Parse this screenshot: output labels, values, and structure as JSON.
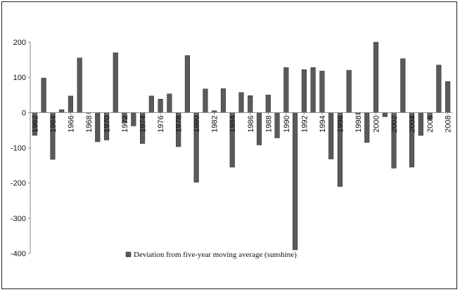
{
  "chart_data": {
    "type": "bar",
    "x": [
      1962,
      1963,
      1964,
      1965,
      1966,
      1967,
      1968,
      1969,
      1970,
      1971,
      1972,
      1973,
      1974,
      1975,
      1976,
      1977,
      1978,
      1979,
      1980,
      1981,
      1982,
      1983,
      1984,
      1985,
      1986,
      1987,
      1988,
      1989,
      1990,
      1991,
      1992,
      1993,
      1994,
      1995,
      1996,
      1997,
      1998,
      1999,
      2000,
      2001,
      2002,
      2003,
      2004,
      2005,
      2006,
      2007,
      2008
    ],
    "x_tick_labels": [
      "1962",
      "1964",
      "1966",
      "1968",
      "1970",
      "1972",
      "1974",
      "1976",
      "1978",
      "1980",
      "1982",
      "1984",
      "1986",
      "1988",
      "1990",
      "1992",
      "1994",
      "1996",
      "1998",
      "2000",
      "2002",
      "2004",
      "2006",
      "2008"
    ],
    "series": [
      {
        "name": "Deviation from five-year moving average (sunshine)",
        "values": [
          -65,
          98,
          -133,
          8,
          47,
          155,
          0,
          -83,
          -78,
          170,
          -30,
          -38,
          -88,
          47,
          38,
          53,
          -97,
          162,
          -198,
          67,
          5,
          68,
          -155,
          57,
          48,
          -92,
          50,
          -72,
          128,
          -390,
          122,
          128,
          118,
          -132,
          -210,
          120,
          -5,
          -85,
          200,
          -12,
          -158,
          153,
          -155,
          -65,
          -20,
          135,
          88
        ]
      }
    ],
    "ylim": [
      -400,
      200
    ],
    "yticks": [
      "-400",
      "-300",
      "-200",
      "-100",
      "0",
      "100",
      "200"
    ],
    "title": "",
    "xlabel": "",
    "ylabel": "",
    "grid": false,
    "legend_position": "bottom",
    "colors": {
      "bar": "#5a5a5a",
      "bar_edge": "#2a2a2a",
      "axis": "#888888"
    }
  }
}
